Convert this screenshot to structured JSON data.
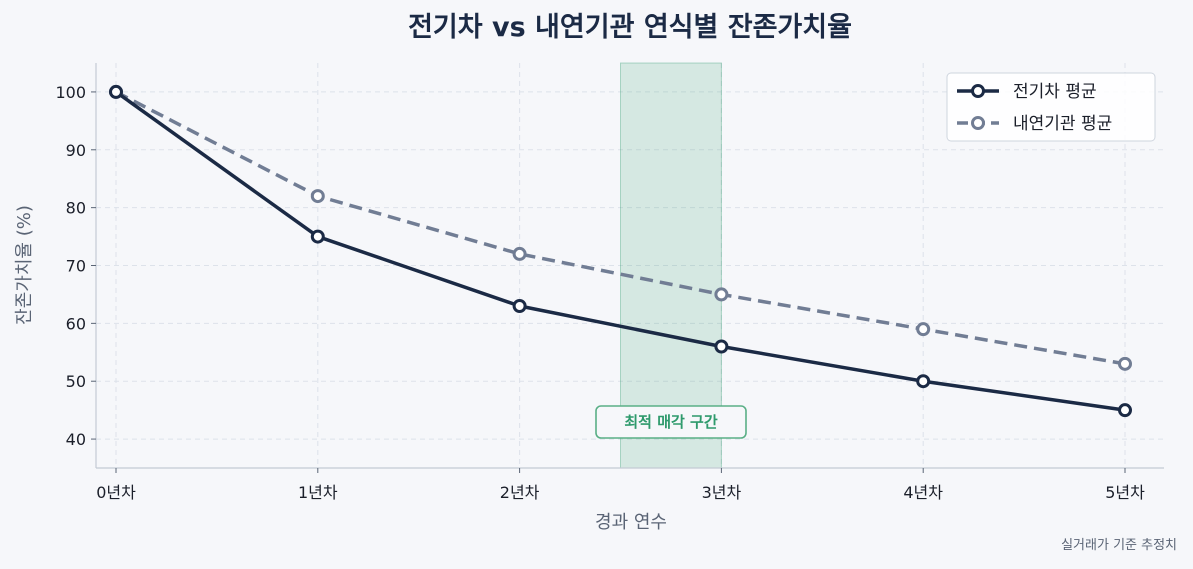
{
  "chart_data": {
    "type": "line",
    "title": "전기차 vs 내연기관 연식별 잔존가치율",
    "xlabel": "경과 연수",
    "ylabel": "잔존가치율 (%)",
    "categories": [
      "0년차",
      "1년차",
      "2년차",
      "3년차",
      "4년차",
      "5년차"
    ],
    "ylim": [
      35,
      105
    ],
    "yticks": [
      40,
      50,
      60,
      70,
      80,
      90,
      100
    ],
    "grid": true,
    "legend_position": "top-right",
    "series": [
      {
        "name": "전기차 평균",
        "values": [
          100,
          75,
          63,
          56,
          50,
          45
        ],
        "color": "#1b2a45",
        "style": "solid"
      },
      {
        "name": "내연기관 평균",
        "values": [
          100,
          82,
          72,
          65,
          59,
          53
        ],
        "color": "#717d94",
        "style": "dashed"
      }
    ],
    "highlight_region": {
      "x_from": 2.5,
      "x_to": 3.0,
      "label": "최적 매각 구간",
      "color": "#2e9a6c"
    },
    "footnote": "실거래가 기준 추정치"
  }
}
